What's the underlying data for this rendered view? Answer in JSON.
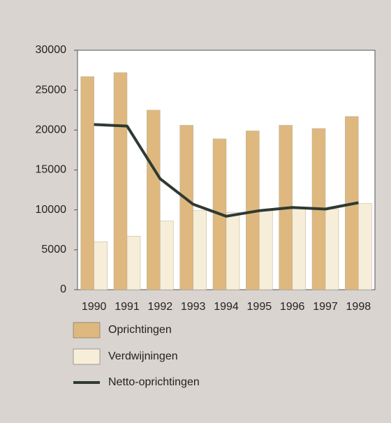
{
  "chart_data": {
    "type": "bar",
    "categories": [
      "1990",
      "1991",
      "1992",
      "1993",
      "1994",
      "1995",
      "1996",
      "1997",
      "1998"
    ],
    "series": [
      {
        "name": "Oprichtingen",
        "type": "bar",
        "color": "#deb87e",
        "values": [
          26700,
          27200,
          22500,
          20600,
          18900,
          19900,
          20600,
          20200,
          21700
        ]
      },
      {
        "name": "Verdwijningen",
        "type": "bar",
        "color": "#f6eed8",
        "values": [
          6000,
          6700,
          8600,
          9900,
          9700,
          10000,
          10300,
          10100,
          10800
        ]
      },
      {
        "name": "Netto-oprichtingen",
        "type": "line",
        "color": "#2e3a33",
        "values": [
          20700,
          20500,
          13900,
          10700,
          9200,
          9900,
          10300,
          10100,
          10900
        ]
      }
    ],
    "ylim": [
      0,
      30000
    ],
    "yticks": [
      0,
      5000,
      10000,
      15000,
      20000,
      25000,
      30000
    ]
  }
}
